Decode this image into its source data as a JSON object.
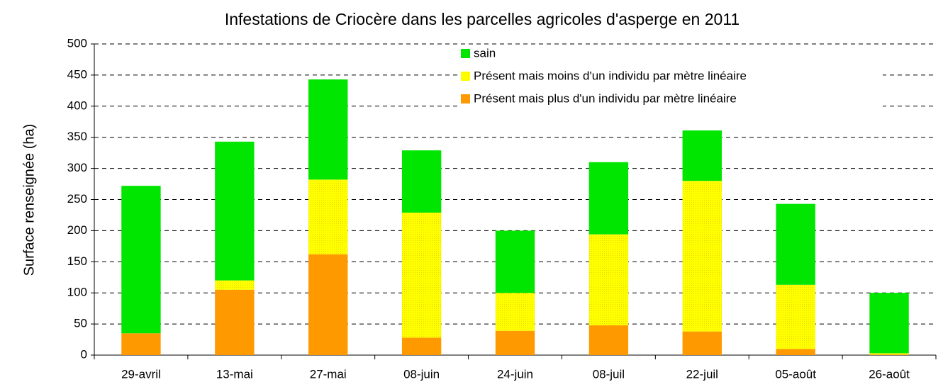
{
  "chart_data": {
    "type": "stacked_bar",
    "title": "Infestations de Criocère dans les parcelles agricoles d'asperge en 2011",
    "y_label": "Surface renseignée (ha)",
    "categories": [
      "29-avril",
      "13-mai",
      "27-mai",
      "08-juin",
      "24-juin",
      "08-juil",
      "22-juil",
      "05-août",
      "26-août"
    ],
    "series": [
      {
        "name": "sain",
        "color": "#00e600",
        "values": [
          237,
          223,
          161,
          100,
          100,
          116,
          81,
          130,
          97
        ]
      },
      {
        "name": "Présent mais moins d'un individu par mètre linéaire",
        "color": "#ffff00",
        "values": [
          0,
          15,
          120,
          201,
          61,
          146,
          242,
          103,
          2
        ]
      },
      {
        "name": "Présent mais plus d'un individu par mètre linéaire",
        "color": "#ff9900",
        "values": [
          35,
          105,
          162,
          28,
          39,
          48,
          38,
          10,
          1
        ]
      }
    ],
    "ylim": [
      0,
      500
    ],
    "yticks": [
      0,
      50,
      100,
      150,
      200,
      250,
      300,
      350,
      400,
      450,
      500
    ],
    "grid": true,
    "legend": "top"
  }
}
